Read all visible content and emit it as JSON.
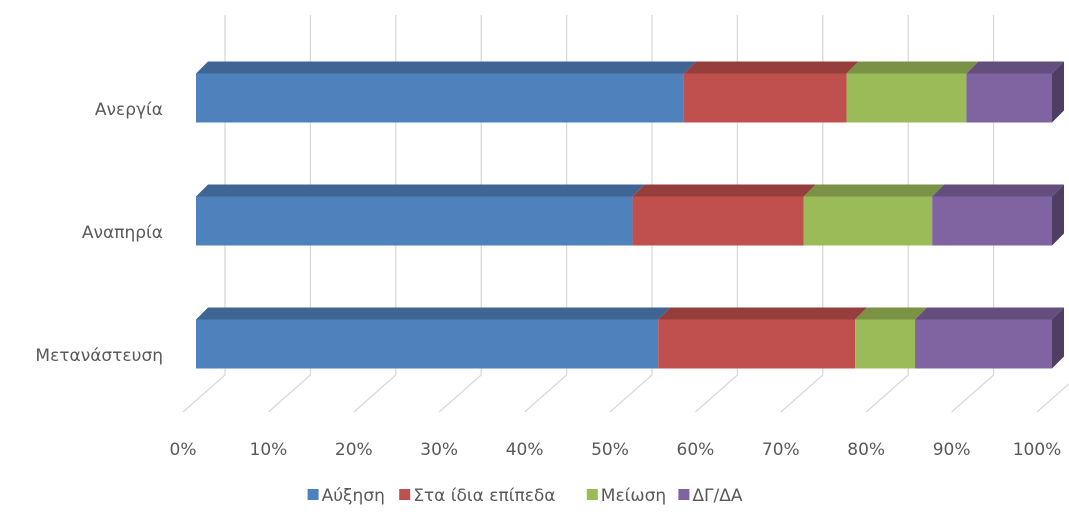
{
  "chart_data": {
    "type": "bar3d_stacked_percent_horizontal",
    "categories": [
      "Ανεργία",
      "Αναπηρία",
      "Μετανάστευση"
    ],
    "series": [
      {
        "name": "Αύξηση",
        "color": "#4f81bd",
        "values": [
          57,
          51,
          54
        ]
      },
      {
        "name": "Στα ίδια επίπεδα",
        "color": "#c0504d",
        "values": [
          19,
          20,
          23
        ]
      },
      {
        "name": "Μείωση",
        "color": "#9bbb59",
        "values": [
          14,
          15,
          7
        ]
      },
      {
        "name": "ΔΓ/ΔΑ",
        "color": "#8064a2",
        "values": [
          10,
          14,
          16
        ]
      }
    ],
    "xlim": [
      0,
      100
    ],
    "xticks": [
      {
        "value": 0,
        "label": "0%"
      },
      {
        "value": 10,
        "label": "10%"
      },
      {
        "value": 20,
        "label": "20%"
      },
      {
        "value": 30,
        "label": "30%"
      },
      {
        "value": 40,
        "label": "40%"
      },
      {
        "value": 50,
        "label": "50%"
      },
      {
        "value": 60,
        "label": "60%"
      },
      {
        "value": 70,
        "label": "70%"
      },
      {
        "value": 80,
        "label": "80%"
      },
      {
        "value": 90,
        "label": "90%"
      },
      {
        "value": 100,
        "label": "100%"
      }
    ],
    "grid": true,
    "legend": "bottom"
  }
}
